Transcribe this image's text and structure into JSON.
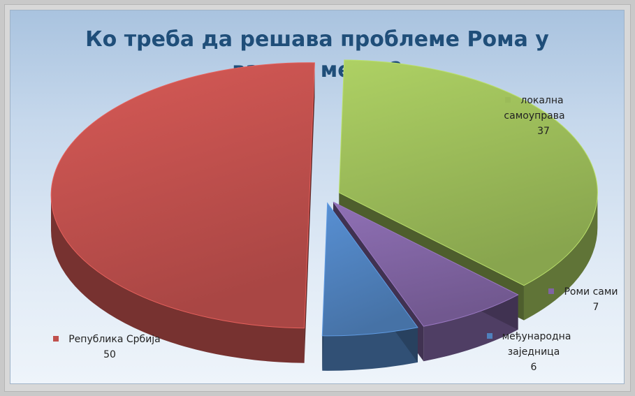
{
  "chart_data": {
    "type": "pie",
    "title_lines": [
      "Ко треба да решава проблеме Рома у",
      "вашем месту?"
    ],
    "slices": [
      {
        "label_lines": [
          "локална",
          "самоуправа"
        ],
        "value": 37,
        "value_label": "37",
        "color": "#9bbb59"
      },
      {
        "label_lines": [
          "Роми сами"
        ],
        "value": 7,
        "value_label": "7",
        "color": "#8064a2"
      },
      {
        "label_lines": [
          "међународна",
          "заједница"
        ],
        "value": 6,
        "value_label": "6",
        "color": "#4f81bd"
      },
      {
        "label_lines": [
          "Република Србија"
        ],
        "value": 50,
        "value_label": "50",
        "color": "#c0504d"
      }
    ],
    "exploded": true,
    "three_d": true
  }
}
